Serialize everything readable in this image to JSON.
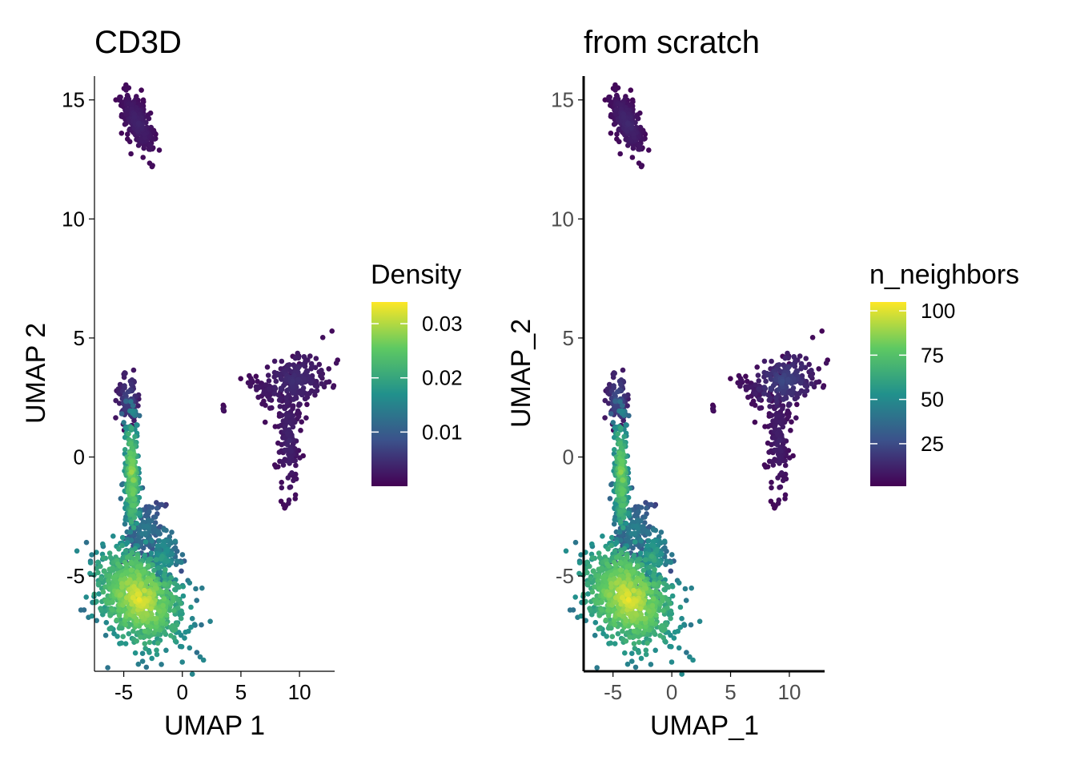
{
  "chart_data": [
    {
      "type": "scatter",
      "title": "CD3D",
      "xlabel": "UMAP 1",
      "ylabel": "UMAP 2",
      "xlim": [
        -7.5,
        13
      ],
      "ylim": [
        -9,
        16
      ],
      "x_ticks": [
        -5,
        0,
        5,
        10
      ],
      "x_tick_labels": [
        "-5",
        "0",
        "5",
        "10"
      ],
      "y_ticks": [
        -5,
        0,
        5,
        10,
        15
      ],
      "y_tick_labels": [
        "-5",
        "0",
        "5",
        "10",
        "15"
      ],
      "grid": false,
      "color_legend": {
        "title": "Density",
        "min": 0.0,
        "max": 0.034,
        "ticks": [
          0.01,
          0.02,
          0.03
        ],
        "tick_labels": [
          "0.01",
          "0.02",
          "0.03"
        ],
        "colors": [
          "#440154",
          "#3b528b",
          "#21918c",
          "#5ec962",
          "#fde725"
        ]
      },
      "clusters": [
        {
          "cx": -3.8,
          "cy": 14.0,
          "sx": 0.8,
          "sy": 0.4,
          "rot": -0.7,
          "n": 260,
          "value_range": [
            0.0005,
            0.004
          ]
        },
        {
          "cx": 9.5,
          "cy": 3.2,
          "sx": 1.3,
          "sy": 0.55,
          "rot": 0.1,
          "n": 230,
          "value_range": [
            0.001,
            0.005
          ]
        },
        {
          "cx": 9.1,
          "cy": 0.8,
          "sx": 0.5,
          "sy": 1.3,
          "rot": 0.0,
          "n": 150,
          "value_range": [
            0.0005,
            0.004
          ]
        },
        {
          "cx": 6.8,
          "cy": 2.8,
          "sx": 0.7,
          "sy": 0.2,
          "rot": -0.3,
          "n": 35,
          "value_range": [
            0.0005,
            0.003
          ]
        },
        {
          "cx": 3.5,
          "cy": 2.0,
          "sx": 0.08,
          "sy": 0.08,
          "rot": 0.0,
          "n": 6,
          "value_range": [
            0.0005,
            0.002
          ]
        },
        {
          "cx": -4.6,
          "cy": 2.4,
          "sx": 0.45,
          "sy": 0.55,
          "rot": 0.0,
          "n": 90,
          "value_range": [
            0.001,
            0.008
          ]
        },
        {
          "cx": -4.3,
          "cy": -0.8,
          "sx": 0.35,
          "sy": 1.4,
          "rot": 0.05,
          "n": 260,
          "value_range": [
            0.01,
            0.03
          ]
        },
        {
          "cx": -3.2,
          "cy": -3.1,
          "sx": 0.9,
          "sy": 0.6,
          "rot": 0.4,
          "n": 120,
          "value_range": [
            0.004,
            0.015
          ]
        },
        {
          "cx": -3.7,
          "cy": -5.9,
          "sx": 1.9,
          "sy": 1.0,
          "rot": -0.2,
          "n": 900,
          "value_range": [
            0.012,
            0.034
          ]
        },
        {
          "cx": -1.6,
          "cy": -4.3,
          "sx": 0.6,
          "sy": 0.7,
          "rot": 0.0,
          "n": 120,
          "value_range": [
            0.008,
            0.02
          ]
        }
      ]
    },
    {
      "type": "scatter",
      "title": "from scratch",
      "xlabel": "UMAP_1",
      "ylabel": "UMAP_2",
      "xlim": [
        -7.5,
        13
      ],
      "ylim": [
        -9,
        16
      ],
      "x_ticks": [
        -5,
        0,
        5,
        10
      ],
      "x_tick_labels": [
        "-5",
        "0",
        "5",
        "10"
      ],
      "y_ticks": [
        -5,
        0,
        5,
        10,
        15
      ],
      "y_tick_labels": [
        "-5",
        "0",
        "5",
        "10",
        "15"
      ],
      "grid": false,
      "color_legend": {
        "title": "n_neighbors",
        "min": 1,
        "max": 105,
        "ticks": [
          25,
          50,
          75,
          100
        ],
        "tick_labels": [
          "25",
          "50",
          "75",
          "100"
        ],
        "colors": [
          "#440154",
          "#3b528b",
          "#21918c",
          "#5ec962",
          "#fde725"
        ]
      },
      "clusters": [
        {
          "cx": -3.8,
          "cy": 14.0,
          "sx": 0.8,
          "sy": 0.4,
          "rot": -0.7,
          "n": 260,
          "value_range": [
            2,
            15
          ]
        },
        {
          "cx": 9.5,
          "cy": 3.2,
          "sx": 1.3,
          "sy": 0.55,
          "rot": 0.1,
          "n": 230,
          "value_range": [
            2,
            25
          ]
        },
        {
          "cx": 9.1,
          "cy": 0.8,
          "sx": 0.5,
          "sy": 1.3,
          "rot": 0.0,
          "n": 150,
          "value_range": [
            2,
            12
          ]
        },
        {
          "cx": 6.8,
          "cy": 2.8,
          "sx": 0.7,
          "sy": 0.2,
          "rot": -0.3,
          "n": 35,
          "value_range": [
            2,
            10
          ]
        },
        {
          "cx": 3.5,
          "cy": 2.0,
          "sx": 0.08,
          "sy": 0.08,
          "rot": 0.0,
          "n": 6,
          "value_range": [
            2,
            6
          ]
        },
        {
          "cx": -4.6,
          "cy": 2.4,
          "sx": 0.45,
          "sy": 0.55,
          "rot": 0.0,
          "n": 90,
          "value_range": [
            4,
            30
          ]
        },
        {
          "cx": -4.3,
          "cy": -0.8,
          "sx": 0.35,
          "sy": 1.4,
          "rot": 0.05,
          "n": 260,
          "value_range": [
            30,
            90
          ]
        },
        {
          "cx": -3.2,
          "cy": -3.1,
          "sx": 0.9,
          "sy": 0.6,
          "rot": 0.4,
          "n": 120,
          "value_range": [
            15,
            50
          ]
        },
        {
          "cx": -3.7,
          "cy": -5.9,
          "sx": 1.9,
          "sy": 1.0,
          "rot": -0.2,
          "n": 900,
          "value_range": [
            40,
            105
          ]
        },
        {
          "cx": -1.6,
          "cy": -4.3,
          "sx": 0.6,
          "sy": 0.7,
          "rot": 0.0,
          "n": 120,
          "value_range": [
            25,
            70
          ]
        }
      ]
    }
  ]
}
